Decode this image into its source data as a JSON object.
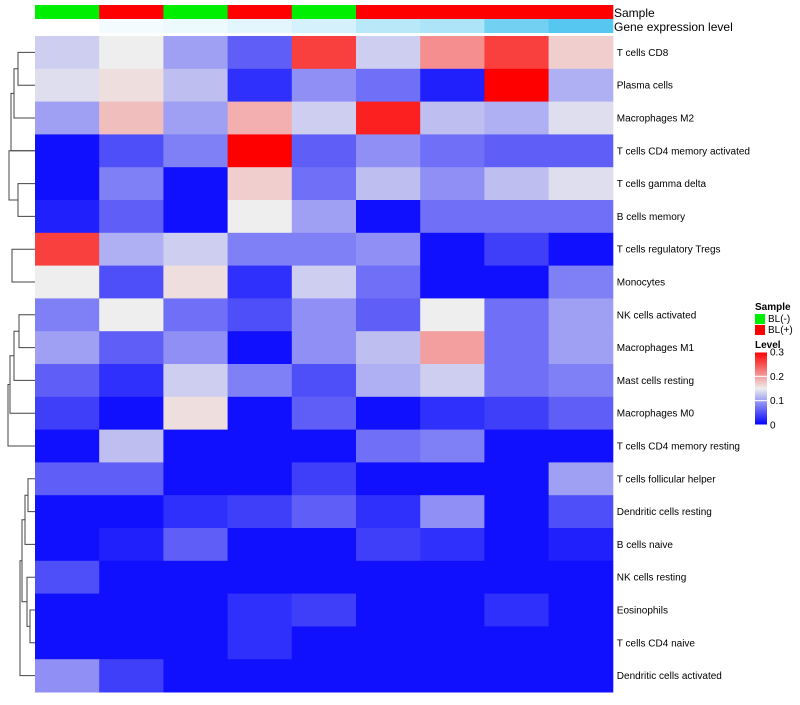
{
  "chart_data": {
    "type": "heatmap",
    "annotation_tracks": [
      {
        "name": "Sample",
        "values": [
          "BL(-)",
          "BL(+)",
          "BL(-)",
          "BL(+)",
          "BL(-)",
          "BL(+)",
          "BL(+)",
          "BL(+)",
          "BL(+)"
        ]
      },
      {
        "name": "Gene expression level",
        "values": [
          0,
          0.05,
          0.08,
          0.12,
          0.18,
          0.3,
          0.35,
          0.6,
          0.72
        ]
      }
    ],
    "rows": [
      "T cells CD8",
      "Plasma cells",
      "Macrophages M2",
      "T cells CD4 memory activated",
      "T cells gamma delta",
      "B cells memory",
      "T cells regulatory  Tregs",
      "Monocytes",
      "NK cells activated",
      "Macrophages M1",
      "Mast cells resting",
      "Macrophages M0",
      "T cells CD4 memory resting",
      "T cells follicular helper",
      "Dendritic cells resting",
      "B cells naive",
      "NK cells resting",
      "Eosinophils",
      "T cells CD4 naive",
      "Dendritic cells activated"
    ],
    "values": [
      [
        0.13,
        0.15,
        0.1,
        0.06,
        0.26,
        0.13,
        0.21,
        0.26,
        0.17
      ],
      [
        0.14,
        0.16,
        0.12,
        0.03,
        0.09,
        0.07,
        0.02,
        0.3,
        0.11
      ],
      [
        0.1,
        0.18,
        0.1,
        0.19,
        0.13,
        0.28,
        0.12,
        0.11,
        0.14
      ],
      [
        0.01,
        0.05,
        0.08,
        0.3,
        0.06,
        0.09,
        0.07,
        0.06,
        0.06
      ],
      [
        0.01,
        0.08,
        0.01,
        0.17,
        0.07,
        0.12,
        0.09,
        0.12,
        0.14
      ],
      [
        0.02,
        0.06,
        0.01,
        0.15,
        0.1,
        0.01,
        0.07,
        0.07,
        0.07
      ],
      [
        0.26,
        0.11,
        0.13,
        0.08,
        0.08,
        0.09,
        0.01,
        0.04,
        0.01
      ],
      [
        0.15,
        0.05,
        0.16,
        0.03,
        0.13,
        0.07,
        0.01,
        0.01,
        0.08
      ],
      [
        0.08,
        0.15,
        0.07,
        0.05,
        0.09,
        0.06,
        0.15,
        0.07,
        0.1
      ],
      [
        0.1,
        0.06,
        0.09,
        0.01,
        0.09,
        0.12,
        0.2,
        0.07,
        0.1
      ],
      [
        0.06,
        0.03,
        0.13,
        0.08,
        0.05,
        0.11,
        0.13,
        0.07,
        0.08
      ],
      [
        0.04,
        0.01,
        0.16,
        0.01,
        0.06,
        0.01,
        0.03,
        0.04,
        0.06
      ],
      [
        0.01,
        0.12,
        0.01,
        0.01,
        0.01,
        0.07,
        0.08,
        0.01,
        0.01
      ],
      [
        0.06,
        0.06,
        0.01,
        0.01,
        0.04,
        0.01,
        0.01,
        0.01,
        0.1
      ],
      [
        0.01,
        0.01,
        0.03,
        0.04,
        0.06,
        0.03,
        0.09,
        0.01,
        0.05
      ],
      [
        0.01,
        0.02,
        0.06,
        0.01,
        0.01,
        0.04,
        0.03,
        0.01,
        0.02
      ],
      [
        0.05,
        0.01,
        0.01,
        0.01,
        0.01,
        0.01,
        0.01,
        0.01,
        0.01
      ],
      [
        0.01,
        0.01,
        0.01,
        0.03,
        0.04,
        0.01,
        0.01,
        0.03,
        0.01
      ],
      [
        0.01,
        0.01,
        0.01,
        0.03,
        0.01,
        0.01,
        0.01,
        0.01,
        0.01
      ],
      [
        0.09,
        0.04,
        0.01,
        0.01,
        0.01,
        0.01,
        0.01,
        0.01,
        0.01
      ]
    ],
    "legend": {
      "sample": {
        "title": "Sample",
        "items": [
          {
            "label": "BL(-)",
            "color": "#00ee00"
          },
          {
            "label": "BL(+)",
            "color": "#ff0000"
          }
        ]
      },
      "level": {
        "title": "Level",
        "ticks": [
          "0.3",
          "0.2",
          "0.1",
          "0"
        ],
        "tick_values": [
          0.3,
          0.2,
          0.1,
          0
        ],
        "range": [
          0,
          0.3
        ]
      }
    },
    "colors": {
      "low": "#0000ff",
      "mid": "#eeeeee",
      "high": "#ff0000"
    },
    "level_track_colors": {
      "low": "#ffffff",
      "high": "#56c7f0"
    },
    "dendrogram": "left",
    "legend_placement": "right"
  }
}
